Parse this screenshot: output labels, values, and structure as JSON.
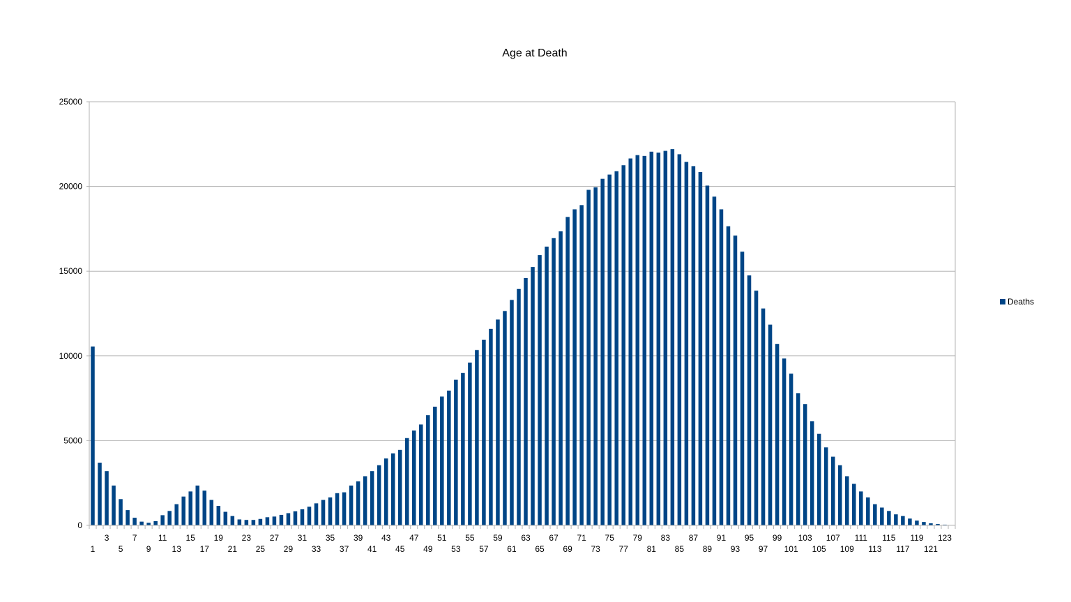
{
  "chart_data": {
    "type": "bar",
    "title": "Age at Death",
    "xlabel": "",
    "ylabel": "",
    "ylim": [
      0,
      25000
    ],
    "y_ticks": [
      0,
      5000,
      10000,
      15000,
      20000,
      25000
    ],
    "grid": true,
    "legend_position": "right",
    "categories": [
      1,
      2,
      3,
      4,
      5,
      6,
      7,
      8,
      9,
      10,
      11,
      12,
      13,
      14,
      15,
      16,
      17,
      18,
      19,
      20,
      21,
      22,
      23,
      24,
      25,
      26,
      27,
      28,
      29,
      30,
      31,
      32,
      33,
      34,
      35,
      36,
      37,
      38,
      39,
      40,
      41,
      42,
      43,
      44,
      45,
      46,
      47,
      48,
      49,
      50,
      51,
      52,
      53,
      54,
      55,
      56,
      57,
      58,
      59,
      60,
      61,
      62,
      63,
      64,
      65,
      66,
      67,
      68,
      69,
      70,
      71,
      72,
      73,
      74,
      75,
      76,
      77,
      78,
      79,
      80,
      81,
      82,
      83,
      84,
      85,
      86,
      87,
      88,
      89,
      90,
      91,
      92,
      93,
      94,
      95,
      96,
      97,
      98,
      99,
      100,
      101,
      102,
      103,
      104,
      105,
      106,
      107,
      108,
      109,
      110,
      111,
      112,
      113,
      114,
      115,
      116,
      117,
      118,
      119,
      120,
      121,
      122,
      123,
      124
    ],
    "series": [
      {
        "name": "Deaths",
        "color": "#004586",
        "values": [
          10550,
          3700,
          3200,
          2350,
          1550,
          900,
          450,
          220,
          150,
          250,
          600,
          850,
          1250,
          1700,
          2000,
          2350,
          2050,
          1500,
          1150,
          800,
          550,
          350,
          320,
          320,
          380,
          480,
          520,
          620,
          720,
          830,
          950,
          1100,
          1300,
          1500,
          1650,
          1900,
          1950,
          2350,
          2600,
          2900,
          3200,
          3550,
          3950,
          4250,
          4450,
          5150,
          5600,
          5950,
          6500,
          7000,
          7600,
          7950,
          8600,
          9000,
          9600,
          10350,
          10950,
          11600,
          12150,
          12650,
          13300,
          13950,
          14600,
          15250,
          15950,
          16450,
          16950,
          17350,
          18200,
          18650,
          18900,
          19800,
          19950,
          20450,
          20700,
          20900,
          21250,
          21650,
          21850,
          21800,
          22050,
          22000,
          22100,
          22200,
          21900,
          21450,
          21200,
          20850,
          20050,
          19400,
          18650,
          17650,
          17100,
          16150,
          14750,
          13850,
          12800,
          11850,
          10700,
          9850,
          8950,
          7800,
          7150,
          6150,
          5400,
          4600,
          4050,
          3550,
          2900,
          2450,
          2000,
          1650,
          1250,
          1050,
          850,
          650,
          550,
          400,
          280,
          200,
          120,
          80,
          40,
          20
        ]
      }
    ],
    "bar_labels_top": [
      "3",
      "7",
      "11",
      "15",
      "19",
      "23",
      "27",
      "31",
      "35",
      "39",
      "43",
      "47",
      "51",
      "55",
      "59",
      "63",
      "67",
      "71",
      "75",
      "79",
      "83",
      "87",
      "91",
      "95",
      "99",
      "103",
      "107",
      "111",
      "115",
      "119",
      "123"
    ],
    "bar_labels_bottom": [
      "1",
      "5",
      "9",
      "13",
      "17",
      "21",
      "25",
      "29",
      "33",
      "37",
      "41",
      "45",
      "49",
      "53",
      "57",
      "61",
      "65",
      "69",
      "73",
      "77",
      "81",
      "85",
      "89",
      "93",
      "97",
      "101",
      "105",
      "109",
      "113",
      "117",
      "121"
    ]
  }
}
